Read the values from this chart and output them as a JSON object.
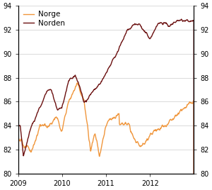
{
  "norge_color": "#F0963C",
  "norden_color": "#6B1010",
  "ylim": [
    80,
    94
  ],
  "yticks": [
    80,
    82,
    84,
    86,
    88,
    90,
    92,
    94
  ],
  "xlabel_ticks": [
    "2009",
    "2010",
    "2011",
    "2012"
  ],
  "legend_norge": "Norge",
  "legend_norden": "Norden",
  "background_color": "#ffffff",
  "grid_color": "#cccccc",
  "xlim": [
    2009.0,
    2013.0
  ]
}
